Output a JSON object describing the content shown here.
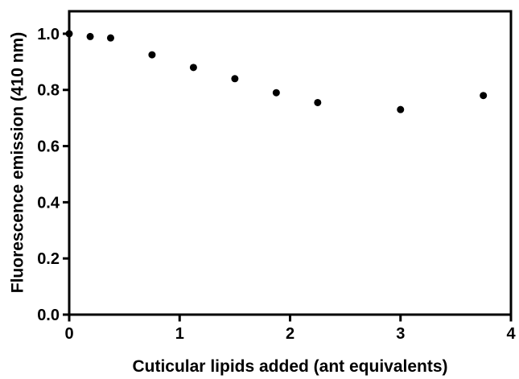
{
  "figure": {
    "background_color": "#ffffff",
    "frame_color": "#000000"
  },
  "chart_data": {
    "type": "scatter",
    "title": "",
    "xlabel": "Cuticular lipids added (ant equivalents)",
    "ylabel": "Fluorescence emission (410 nm)",
    "xlim": [
      0,
      4
    ],
    "ylim": [
      0,
      1.08
    ],
    "grid": false,
    "legend": false,
    "xticks": [
      {
        "value": 0,
        "label": "0"
      },
      {
        "value": 1,
        "label": "1"
      },
      {
        "value": 2,
        "label": "2"
      },
      {
        "value": 3,
        "label": "3"
      },
      {
        "value": 4,
        "label": "4"
      }
    ],
    "yticks": [
      {
        "value": 0.0,
        "label": "0.0"
      },
      {
        "value": 0.2,
        "label": "0.2"
      },
      {
        "value": 0.4,
        "label": "0.4"
      },
      {
        "value": 0.6,
        "label": "0.6"
      },
      {
        "value": 0.8,
        "label": "0.8"
      },
      {
        "value": 1.0,
        "label": "1.0"
      }
    ],
    "marker": {
      "shape": "circle",
      "color": "#000000",
      "radius_px": 4.5
    },
    "series": [
      {
        "name": "Fluorescence emission (410 nm)",
        "points": [
          {
            "x": 0.0,
            "y": 1.0
          },
          {
            "x": 0.19,
            "y": 0.99
          },
          {
            "x": 0.375,
            "y": 0.985
          },
          {
            "x": 0.75,
            "y": 0.925
          },
          {
            "x": 1.125,
            "y": 0.88
          },
          {
            "x": 1.5,
            "y": 0.84
          },
          {
            "x": 1.875,
            "y": 0.79
          },
          {
            "x": 2.25,
            "y": 0.755
          },
          {
            "x": 3.0,
            "y": 0.73
          },
          {
            "x": 3.75,
            "y": 0.78
          }
        ]
      }
    ]
  }
}
